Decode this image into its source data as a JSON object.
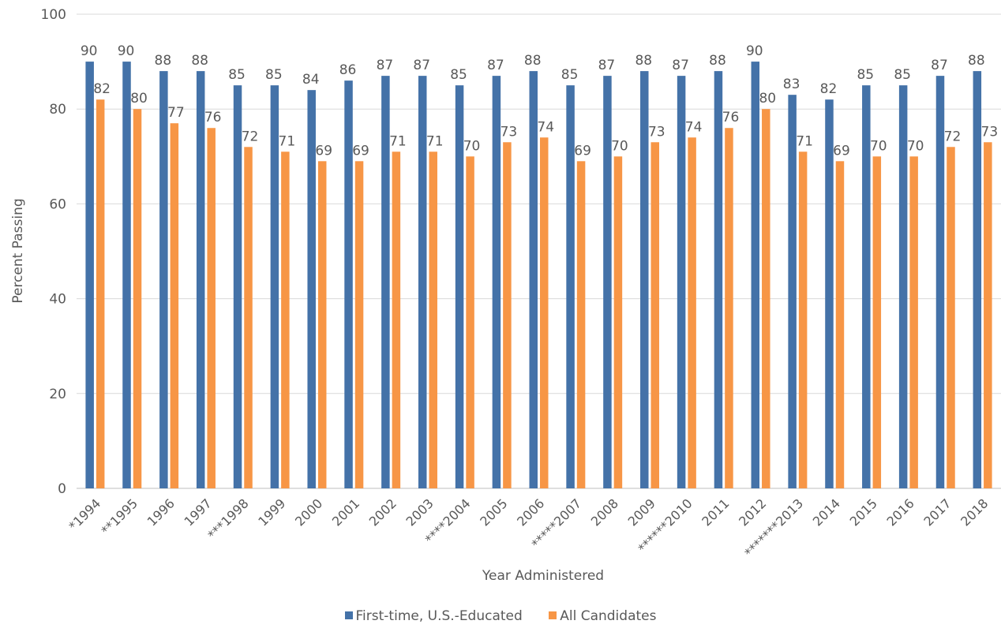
{
  "chart_data": {
    "type": "bar",
    "title": "",
    "xlabel": "Year Administered",
    "ylabel": "Percent Passing",
    "ylim": [
      0,
      100
    ],
    "yticks": [
      0,
      20,
      40,
      60,
      80,
      100
    ],
    "grid": true,
    "legend_position": "bottom",
    "categories": [
      "*1994",
      "**1995",
      "1996",
      "1997",
      "***1998",
      "1999",
      "2000",
      "2001",
      "2002",
      "2003",
      "****2004",
      "2005",
      "2006",
      "*****2007",
      "2008",
      "2009",
      "******2010",
      "2011",
      "2012",
      "*******2013",
      "2014",
      "2015",
      "2016",
      "2017",
      "2018"
    ],
    "series": [
      {
        "name": "First-time, U.S.-Educated",
        "color": "#4472a8",
        "values": [
          90,
          90,
          88,
          88,
          85,
          85,
          84,
          86,
          87,
          87,
          85,
          87,
          88,
          85,
          87,
          88,
          87,
          88,
          90,
          83,
          82,
          85,
          85,
          87,
          88
        ]
      },
      {
        "name": "All Candidates",
        "color": "#f79646",
        "values": [
          82,
          80,
          77,
          76,
          72,
          71,
          69,
          69,
          71,
          71,
          70,
          73,
          74,
          69,
          70,
          73,
          74,
          76,
          80,
          71,
          69,
          70,
          70,
          72,
          73
        ]
      }
    ]
  }
}
